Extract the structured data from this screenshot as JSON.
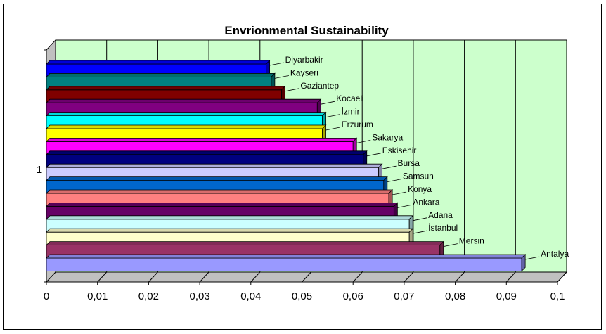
{
  "chart_data": {
    "type": "bar",
    "orientation": "horizontal",
    "title": "Envrionmental Sustainability",
    "category_axis_label": "1",
    "x_ticks": [
      "0",
      "0,01",
      "0,02",
      "0,03",
      "0,04",
      "0,05",
      "0,06",
      "0,07",
      "0,08",
      "0,09",
      "0,1"
    ],
    "xlim": [
      0,
      0.1
    ],
    "grid": true,
    "legend": "none",
    "background_color": "#ccffcc",
    "series": [
      {
        "name": "Diyarbakir",
        "value": 0.043,
        "color": "#0000ff"
      },
      {
        "name": "Kayseri",
        "value": 0.044,
        "color": "#008080"
      },
      {
        "name": "Gaziantep",
        "value": 0.046,
        "color": "#800000"
      },
      {
        "name": "Kocaeli",
        "value": 0.053,
        "color": "#800080"
      },
      {
        "name": "İzmir",
        "value": 0.054,
        "color": "#00ffff"
      },
      {
        "name": "Erzurum",
        "value": 0.054,
        "color": "#ffff00"
      },
      {
        "name": "Sakarya",
        "value": 0.06,
        "color": "#ff00ff"
      },
      {
        "name": "Eskisehir",
        "value": 0.062,
        "color": "#000080"
      },
      {
        "name": "Bursa",
        "value": 0.065,
        "color": "#ccccff"
      },
      {
        "name": "Samsun",
        "value": 0.066,
        "color": "#0066cc"
      },
      {
        "name": "Konya",
        "value": 0.067,
        "color": "#ff8080"
      },
      {
        "name": "Ankara",
        "value": 0.068,
        "color": "#660066"
      },
      {
        "name": "Adana",
        "value": 0.071,
        "color": "#ccffff"
      },
      {
        "name": "İstanbul",
        "value": 0.071,
        "color": "#ffffcc"
      },
      {
        "name": "Mersin",
        "value": 0.077,
        "color": "#993366"
      },
      {
        "name": "Antalya",
        "value": 0.093,
        "color": "#9999ff"
      }
    ]
  }
}
